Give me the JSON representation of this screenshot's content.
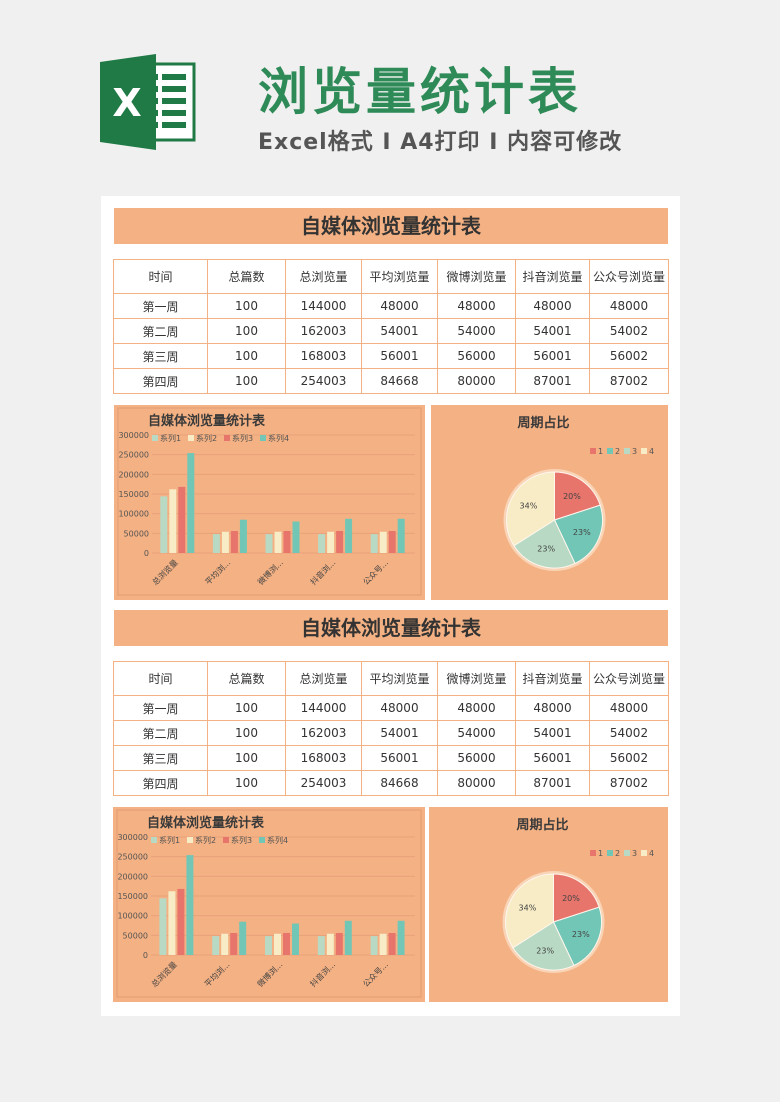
{
  "header": {
    "title": "浏览量统计表",
    "subtitle": "Excel格式 I A4打印 I 内容可修改",
    "logo_letter": "X",
    "brand_color": "#2e8a57"
  },
  "sections": [
    {
      "title": "自媒体浏览量统计表",
      "table": {
        "columns": [
          "时间",
          "总篇数",
          "总浏览量",
          "平均浏览量",
          "微博浏览量",
          "抖音浏览量",
          "公众号浏览量"
        ],
        "rows": [
          [
            "第一周",
            "100",
            "144000",
            "48000",
            "48000",
            "48000",
            "48000"
          ],
          [
            "第二周",
            "100",
            "162003",
            "54001",
            "54000",
            "54001",
            "54002"
          ],
          [
            "第三周",
            "100",
            "168003",
            "56001",
            "56000",
            "56001",
            "56002"
          ],
          [
            "第四周",
            "100",
            "254003",
            "84668",
            "80000",
            "87001",
            "87002"
          ]
        ]
      }
    },
    {
      "title": "自媒体浏览量统计表",
      "table": {
        "columns": [
          "时间",
          "总篇数",
          "总浏览量",
          "平均浏览量",
          "微博浏览量",
          "抖音浏览量",
          "公众号浏览量"
        ],
        "rows": [
          [
            "第一周",
            "100",
            "144000",
            "48000",
            "48000",
            "48000",
            "48000"
          ],
          [
            "第二周",
            "100",
            "162003",
            "54001",
            "54000",
            "54001",
            "54002"
          ],
          [
            "第三周",
            "100",
            "168003",
            "56001",
            "56000",
            "56001",
            "56002"
          ],
          [
            "第四周",
            "100",
            "254003",
            "84668",
            "80000",
            "87001",
            "87002"
          ]
        ]
      }
    }
  ],
  "chart_data": [
    {
      "type": "bar",
      "title": "自媒体浏览量统计表",
      "categories": [
        "总浏览量",
        "平均浏...",
        "微博浏...",
        "抖音浏...",
        "公众号..."
      ],
      "series": [
        {
          "name": "系列1",
          "color": "#b8d9c3",
          "values": [
            144000,
            48000,
            48000,
            48000,
            48000
          ]
        },
        {
          "name": "系列2",
          "color": "#f7ecc6",
          "values": [
            162003,
            54001,
            54000,
            54001,
            54002
          ]
        },
        {
          "name": "系列3",
          "color": "#e7756c",
          "values": [
            168003,
            56001,
            56000,
            56001,
            56002
          ]
        },
        {
          "name": "系列4",
          "color": "#72c6b6",
          "values": [
            254003,
            84668,
            80000,
            87001,
            87002
          ]
        }
      ],
      "ylim": [
        0,
        300000
      ],
      "yticks": [
        "0",
        "50000",
        "100000",
        "150000",
        "200000",
        "250000",
        "300000"
      ],
      "legend": "top-left"
    },
    {
      "type": "pie",
      "title": "周期占比",
      "slices": [
        {
          "name": "1",
          "value": 20,
          "label": "20%",
          "color": "#e7756c"
        },
        {
          "name": "2",
          "value": 23,
          "label": "23%",
          "color": "#72c6b6"
        },
        {
          "name": "3",
          "value": 23,
          "label": "23%",
          "color": "#b8d9c3"
        },
        {
          "name": "4",
          "value": 34,
          "label": "34%",
          "color": "#f7ecc6"
        }
      ],
      "legend": "top-right"
    },
    {
      "type": "bar",
      "title": "自媒体浏览量统计表",
      "categories": [
        "总浏览量",
        "平均浏...",
        "微博浏...",
        "抖音浏...",
        "公众号..."
      ],
      "series": [
        {
          "name": "系列1",
          "color": "#b8d9c3",
          "values": [
            144000,
            48000,
            48000,
            48000,
            48000
          ]
        },
        {
          "name": "系列2",
          "color": "#f7ecc6",
          "values": [
            162003,
            54001,
            54000,
            54001,
            54002
          ]
        },
        {
          "name": "系列3",
          "color": "#e7756c",
          "values": [
            168003,
            56001,
            56000,
            56001,
            56002
          ]
        },
        {
          "name": "系列4",
          "color": "#72c6b6",
          "values": [
            254003,
            84668,
            80000,
            87001,
            87002
          ]
        }
      ],
      "ylim": [
        0,
        300000
      ],
      "yticks": [
        "0",
        "50000",
        "100000",
        "150000",
        "200000",
        "250000",
        "300000"
      ],
      "legend": "top-left"
    },
    {
      "type": "pie",
      "title": "周期占比",
      "slices": [
        {
          "name": "1",
          "value": 20,
          "label": "20%",
          "color": "#e7756c"
        },
        {
          "name": "2",
          "value": 23,
          "label": "23%",
          "color": "#72c6b6"
        },
        {
          "name": "3",
          "value": 23,
          "label": "23%",
          "color": "#b8d9c3"
        },
        {
          "name": "4",
          "value": 34,
          "label": "34%",
          "color": "#f7ecc6"
        }
      ],
      "legend": "top-right"
    }
  ]
}
